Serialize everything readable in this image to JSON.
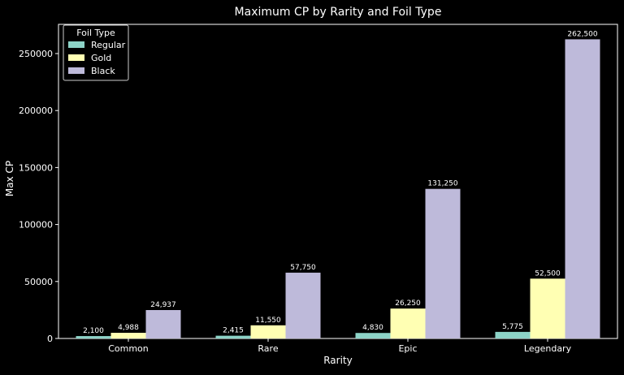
{
  "chart_data": {
    "type": "bar",
    "title": "Maximum CP by Rarity and Foil Type",
    "xlabel": "Rarity",
    "ylabel": "Max CP",
    "categories": [
      "Common",
      "Rare",
      "Epic",
      "Legendary"
    ],
    "series": [
      {
        "name": "Regular",
        "values": [
          2100,
          2415,
          4830,
          5775
        ],
        "labels": [
          "2,100",
          "2,415",
          "4,830",
          "5,775"
        ],
        "color": "#8dd3c7"
      },
      {
        "name": "Gold",
        "values": [
          4988,
          11550,
          26250,
          52500
        ],
        "labels": [
          "4,988",
          "11,550",
          "26,250",
          "52,500"
        ],
        "color": "#ffffb3"
      },
      {
        "name": "Black",
        "values": [
          24937,
          57750,
          131250,
          262500
        ],
        "labels": [
          "24,937",
          "57,750",
          "131,250",
          "262,500"
        ],
        "color": "#bebada"
      }
    ],
    "ylim": [
      0,
      275625
    ],
    "yticks": [
      0,
      50000,
      100000,
      150000,
      200000,
      250000
    ],
    "ytick_labels": [
      "0",
      "50000",
      "100000",
      "150000",
      "200000",
      "250000"
    ],
    "legend": {
      "title": "Foil Type",
      "placement": "top-left"
    },
    "grid": false,
    "background": "#000000"
  }
}
